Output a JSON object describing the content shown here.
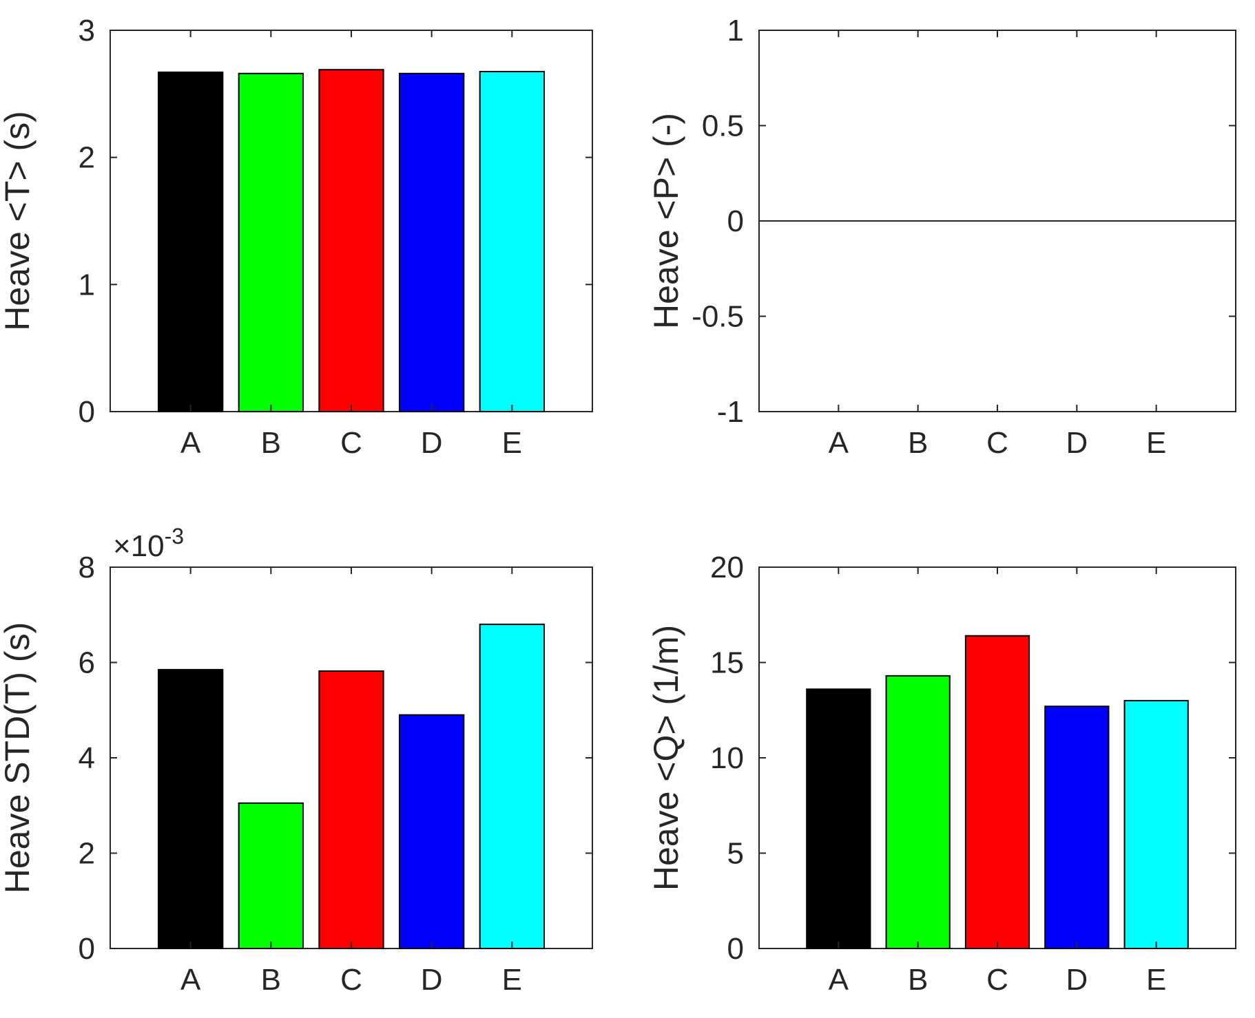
{
  "chart_data": [
    {
      "type": "bar",
      "categories": [
        "A",
        "B",
        "C",
        "D",
        "E"
      ],
      "values": [
        2.67,
        2.66,
        2.69,
        2.66,
        2.675
      ],
      "colors": [
        "#000000",
        "#00ff00",
        "#ff0000",
        "#0000ff",
        "#00ffff"
      ],
      "ylabel": "Heave <T> (s)",
      "xlabel": "",
      "ylim": [
        0,
        3
      ],
      "yticks": [
        0,
        1,
        2,
        3
      ],
      "ytick_labels": [
        "0",
        "1",
        "2",
        "3"
      ],
      "exponent_label": ""
    },
    {
      "type": "bar",
      "categories": [
        "A",
        "B",
        "C",
        "D",
        "E"
      ],
      "values": [
        0,
        0,
        0,
        0,
        0
      ],
      "colors": [
        "#000000",
        "#00ff00",
        "#ff0000",
        "#0000ff",
        "#00ffff"
      ],
      "ylabel": "Heave <P> (-)",
      "xlabel": "",
      "ylim": [
        -1,
        1
      ],
      "yticks": [
        -1,
        -0.5,
        0,
        0.5,
        1
      ],
      "ytick_labels": [
        "-1",
        "-0.5",
        "0",
        "0.5",
        "1"
      ],
      "exponent_label": ""
    },
    {
      "type": "bar",
      "categories": [
        "A",
        "B",
        "C",
        "D",
        "E"
      ],
      "values": [
        0.00585,
        0.00305,
        0.00582,
        0.0049,
        0.0068
      ],
      "colors": [
        "#000000",
        "#00ff00",
        "#ff0000",
        "#0000ff",
        "#00ffff"
      ],
      "ylabel": "Heave STD(T) (s)",
      "xlabel": "",
      "ylim": [
        0,
        0.008
      ],
      "yticks": [
        0,
        0.002,
        0.004,
        0.006,
        0.008
      ],
      "ytick_labels": [
        "0",
        "2",
        "4",
        "6",
        "8"
      ],
      "exponent_label": "×10",
      "exponent_power": "-3"
    },
    {
      "type": "bar",
      "categories": [
        "A",
        "B",
        "C",
        "D",
        "E"
      ],
      "values": [
        13.6,
        14.3,
        16.4,
        12.7,
        13.0
      ],
      "colors": [
        "#000000",
        "#00ff00",
        "#ff0000",
        "#0000ff",
        "#00ffff"
      ],
      "ylabel": "Heave <Q> (1/m)",
      "xlabel": "",
      "ylim": [
        0,
        20
      ],
      "yticks": [
        0,
        5,
        10,
        15,
        20
      ],
      "ytick_labels": [
        "0",
        "5",
        "10",
        "15",
        "20"
      ],
      "exponent_label": ""
    }
  ]
}
